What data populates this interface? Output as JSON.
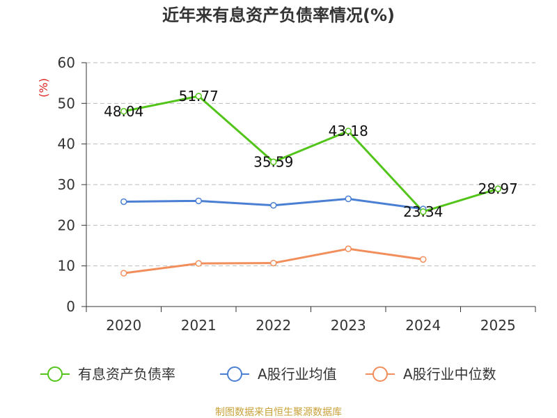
{
  "chart_data": {
    "type": "line",
    "title": "近年来有息资产负债率情况(%)",
    "unit_label": "(%)",
    "categories": [
      "2020",
      "2021",
      "2022",
      "2023",
      "2024",
      "2025"
    ],
    "ylim": [
      0,
      60
    ],
    "yticks": [
      "0",
      "10",
      "20",
      "30",
      "40",
      "50",
      "60"
    ],
    "grid": true,
    "legend_position": "bottom",
    "series": [
      {
        "name": "有息资产负债率",
        "color": "#52c41a",
        "values": [
          48.04,
          51.77,
          35.59,
          43.18,
          23.34,
          28.97
        ],
        "labels": [
          "48.04",
          "51.77",
          "35.59",
          "43.18",
          "23.34",
          "28.97"
        ]
      },
      {
        "name": "A股行业均值",
        "color": "#4a7fd4",
        "values": [
          25.8,
          26.0,
          24.9,
          26.5,
          24.0,
          null
        ]
      },
      {
        "name": "A股行业中位数",
        "color": "#f28e5b",
        "values": [
          8.2,
          10.6,
          10.7,
          14.2,
          11.6,
          null
        ]
      }
    ]
  },
  "source": "制图数据来自恒生聚源数据库"
}
